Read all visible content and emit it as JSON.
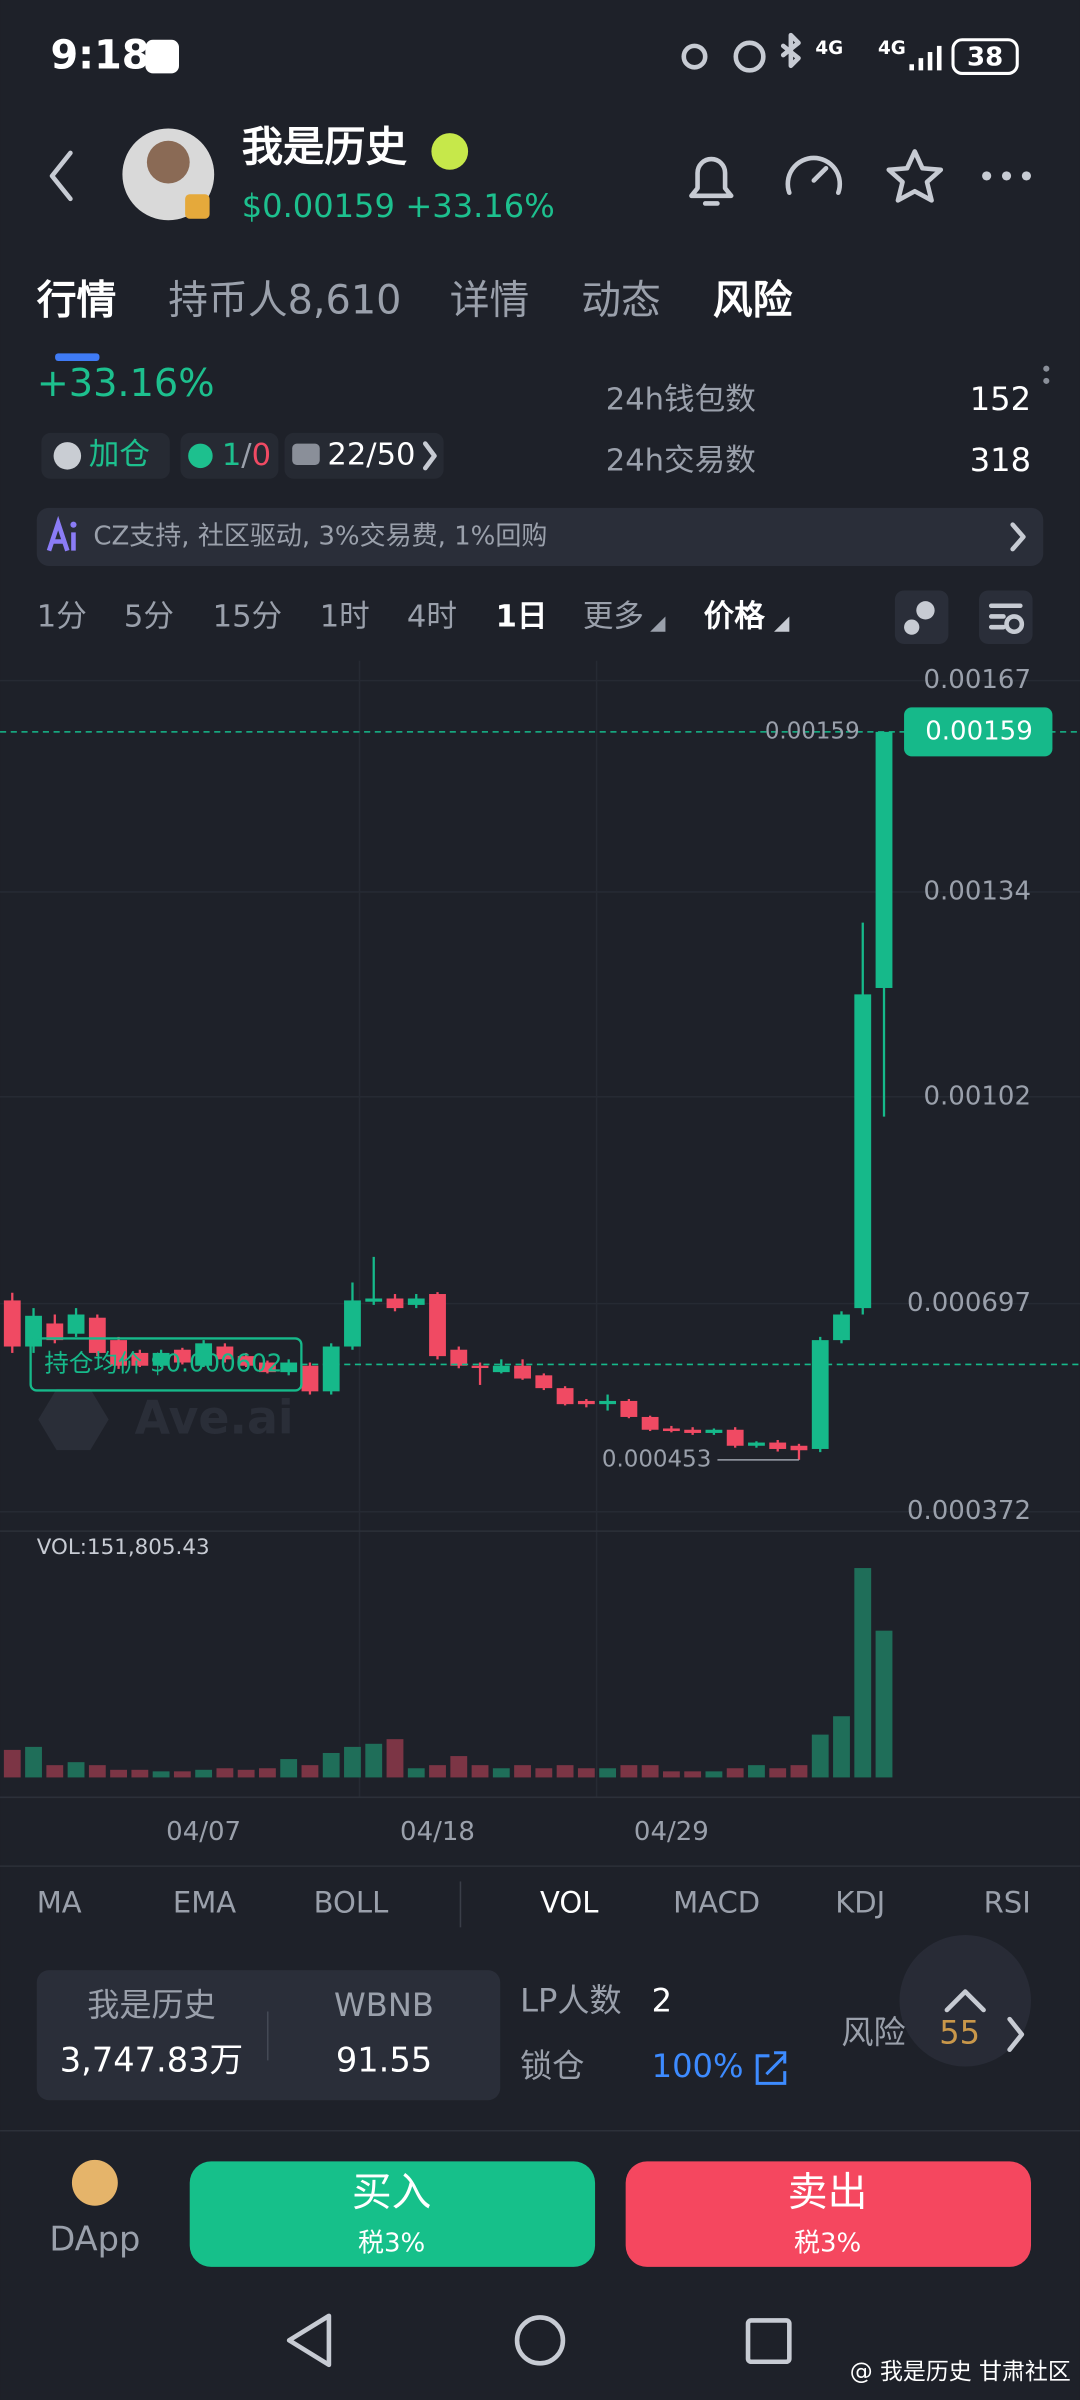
{
  "status_bar": {
    "time": "9:18",
    "network": "4G",
    "battery": "38"
  },
  "header": {
    "name": "我是历史",
    "price": "$0.00159",
    "change": "+33.16%"
  },
  "tabs": [
    "行情",
    "持币人8,610",
    "详情",
    "动态",
    "风险"
  ],
  "stats": {
    "change": "+33.16%",
    "add_badge": "加仓",
    "trade_counts": [
      "1",
      "/",
      "0"
    ],
    "rank": "22/50",
    "wallets_label": "24h钱包数",
    "wallets": "152",
    "tx_label": "24h交易数",
    "tx": "318"
  },
  "banner": "CZ支持, 社区驱动, 3%交易费, 1%回购",
  "intervals": [
    "1分",
    "5分",
    "15分",
    "1时",
    "4时",
    "1日",
    "更多",
    "价格"
  ],
  "chart_data": {
    "type": "candlestick",
    "categories": [
      null,
      null,
      null,
      null,
      null,
      null,
      null,
      null,
      null,
      "04/07",
      null,
      null,
      null,
      null,
      null,
      null,
      null,
      null,
      null,
      null,
      "04/18",
      null,
      null,
      null,
      null,
      null,
      null,
      null,
      null,
      null,
      null,
      "04/29",
      null,
      null,
      null,
      null,
      null,
      null,
      null,
      null,
      null,
      null
    ],
    "open": [
      0.000702,
      0.00063,
      0.000666,
      0.00065,
      0.000675,
      0.00064,
      0.00062,
      0.0006,
      0.000625,
      0.0006,
      0.00063,
      0.000615,
      0.000605,
      0.00059,
      0.0006,
      0.00056,
      0.00063,
      0.0007,
      0.000705,
      0.000695,
      0.000712,
      0.000625,
      0.0006,
      0.00059,
      0.0006,
      0.000585,
      0.000565,
      0.000545,
      0.00054,
      0.000545,
      0.00052,
      0.000502,
      0.0005,
      0.000495,
      0.0005,
      0.000475,
      0.00048,
      0.000475,
      0.00047,
      0.00064,
      0.00069,
      0.00119
    ],
    "high": [
      0.000714,
      0.00069,
      0.00068,
      0.00069,
      0.00068,
      0.000645,
      0.000625,
      0.000625,
      0.000628,
      0.00064,
      0.000635,
      0.00062,
      0.000608,
      0.00061,
      0.000605,
      0.000635,
      0.00073,
      0.00077,
      0.000712,
      0.000712,
      0.000715,
      0.00063,
      0.000605,
      0.00061,
      0.00061,
      0.000588,
      0.000568,
      0.000548,
      0.000555,
      0.000548,
      0.000522,
      0.000506,
      0.000504,
      0.000502,
      0.000504,
      0.000482,
      0.000484,
      0.000478,
      0.000645,
      0.000685,
      0.001292,
      0.00159
    ],
    "low": [
      0.00062,
      0.00062,
      0.000635,
      0.000645,
      0.000615,
      0.000595,
      0.000598,
      0.000598,
      0.000602,
      0.000598,
      0.000605,
      0.000598,
      0.000588,
      0.000585,
      0.000555,
      0.000555,
      0.000625,
      0.000695,
      0.000685,
      0.00069,
      0.00061,
      0.000596,
      0.00057,
      0.000588,
      0.000578,
      0.000562,
      0.000538,
      0.000535,
      0.00053,
      0.000518,
      0.000498,
      0.000496,
      0.000492,
      0.000492,
      0.000472,
      0.000472,
      0.000466,
      0.000453,
      0.000465,
      0.000635,
      0.00068,
      0.000989
    ],
    "close": [
      0.00063,
      0.000678,
      0.00064,
      0.00068,
      0.00062,
      0.0006,
      0.0006,
      0.00062,
      0.000605,
      0.000635,
      0.00061,
      0.0006,
      0.00059,
      0.000605,
      0.00056,
      0.00063,
      0.000702,
      0.000705,
      0.00069,
      0.000705,
      0.000615,
      0.0006,
      0.000598,
      0.0006,
      0.00058,
      0.000565,
      0.00054,
      0.00054,
      0.000545,
      0.00052,
      0.0005,
      0.000498,
      0.000495,
      0.0005,
      0.000475,
      0.00048,
      0.00047,
      0.000468,
      0.00064,
      0.00068,
      0.00118,
      0.00159
    ],
    "ylim": [
      0.000344,
      0.001701
    ],
    "yticks": [
      0.00167,
      0.00134,
      0.00102,
      0.000697,
      0.000372
    ],
    "last_price": 0.00159,
    "avg_cost": 0.000602,
    "avg_cost_label": "持仓均价 $0.000602",
    "low_marker": 0.000453,
    "colors": {
      "up": "#16b98a",
      "down": "#f04a63",
      "up_volume": "#1f6e59",
      "down_volume": "#7c3545"
    },
    "watermark": "Ave.ai",
    "volume": {
      "label": "VOL:151,805.43",
      "ylim": [
        0,
        250000
      ],
      "values": [
        28500,
        31600,
        12700,
        15800,
        12700,
        7900,
        7900,
        6300,
        6300,
        7900,
        9500,
        7900,
        9500,
        19000,
        12700,
        25300,
        31600,
        34800,
        39600,
        9500,
        12700,
        22100,
        12700,
        9500,
        12700,
        9500,
        12700,
        9500,
        9500,
        12700,
        12700,
        6300,
        6300,
        6300,
        9500,
        12700,
        9500,
        12700,
        44300,
        63300,
        216600,
        151805.43
      ]
    }
  },
  "indicators": [
    "MA",
    "EMA",
    "BOLL",
    "VOL",
    "MACD",
    "KDJ",
    "RSI"
  ],
  "pool": {
    "token": "我是历史",
    "token_amount": "3,747.83万",
    "quote": "WBNB",
    "quote_amount": "91.55",
    "lp_label": "LP人数",
    "lp": "2",
    "lock_label": "锁仓",
    "lock": "100%",
    "risk_label": "风险",
    "risk": "55"
  },
  "actions": {
    "dapp": "DApp",
    "buy": "买入",
    "buy_tax": "税3%",
    "sell": "卖出",
    "sell_tax": "税3%"
  },
  "footer_watermark": "@ 我是历史 甘肃社区"
}
